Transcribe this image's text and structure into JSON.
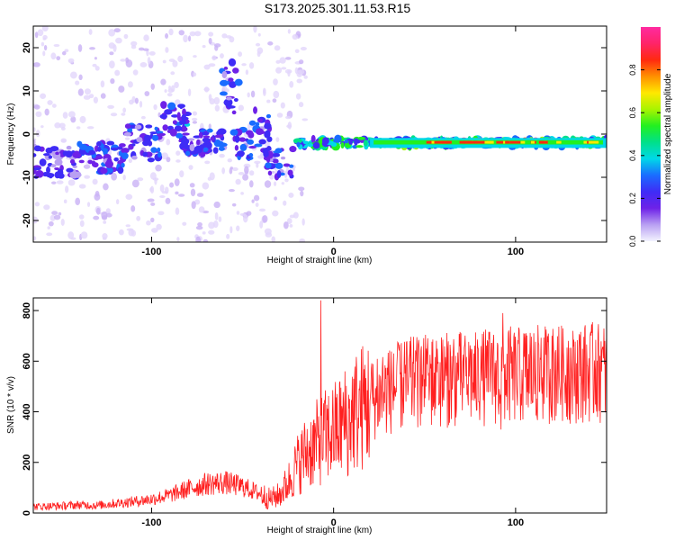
{
  "title": "S173.2025.301.11.53.R15",
  "chart_data": [
    {
      "type": "heatmap",
      "name": "spectrogram",
      "xlabel": "Height of straight line (km)",
      "ylabel": "Frequency (Hz)",
      "xlim": [
        -165,
        150
      ],
      "ylim": [
        -25,
        25
      ],
      "xticks": [
        -100,
        0,
        100
      ],
      "yticks": [
        -20,
        -10,
        0,
        10,
        20
      ],
      "colorbar": {
        "label": "Normalized spectral amplitude",
        "range": [
          0,
          1
        ],
        "ticks": [
          0.0,
          0.2,
          0.4,
          0.6,
          0.8
        ],
        "colors": [
          "#f3f3ff",
          "#b9a0f2",
          "#6e22e8",
          "#3f2cf6",
          "#1a6cff",
          "#00d8e8",
          "#00e08a",
          "#22f020",
          "#a8f400",
          "#ffe800",
          "#ff9000",
          "#ff2a10",
          "#ff2468",
          "#ff2aa0"
        ]
      },
      "bands": [
        {
          "x": [
            -165,
            -140
          ],
          "y": [
            -10,
            -3
          ],
          "amp": 0.25
        },
        {
          "x": [
            -140,
            -115
          ],
          "y": [
            -9,
            -2
          ],
          "amp": 0.3
        },
        {
          "x": [
            -115,
            -95
          ],
          "y": [
            -6,
            2
          ],
          "amp": 0.3
        },
        {
          "x": [
            -95,
            -80
          ],
          "y": [
            -2,
            7
          ],
          "amp": 0.35
        },
        {
          "x": [
            -85,
            -70
          ],
          "y": [
            -5,
            -1
          ],
          "amp": 0.3
        },
        {
          "x": [
            -75,
            -60
          ],
          "y": [
            -4,
            1
          ],
          "amp": 0.3
        },
        {
          "x": [
            -62,
            -52
          ],
          "y": [
            5,
            17
          ],
          "amp": 0.3
        },
        {
          "x": [
            -55,
            -45
          ],
          "y": [
            -6,
            1
          ],
          "amp": 0.3
        },
        {
          "x": [
            -45,
            -35
          ],
          "y": [
            -4,
            6
          ],
          "amp": 0.3
        },
        {
          "x": [
            -38,
            -22
          ],
          "y": [
            -10,
            -3
          ],
          "amp": 0.3
        },
        {
          "x": [
            -20,
            20
          ],
          "y": [
            -3,
            -1
          ],
          "amp": 0.5
        },
        {
          "x": [
            20,
            150
          ],
          "y": [
            -3,
            -1
          ],
          "amp": 0.55
        },
        {
          "x": [
            60,
            130
          ],
          "y": [
            -2.2,
            -1.6
          ],
          "amp": 0.95
        }
      ]
    },
    {
      "type": "line",
      "name": "snr",
      "xlabel": "Height of straight line (km)",
      "ylabel": "SNR (10 * v/v)",
      "xlim": [
        -165,
        150
      ],
      "ylim": [
        0,
        850
      ],
      "xticks": [
        -100,
        0,
        100
      ],
      "yticks": [
        0,
        200,
        400,
        600,
        800
      ],
      "color": "#ff2020",
      "series": [
        {
          "name": "SNR",
          "x": [
            -165,
            -150,
            -140,
            -130,
            -120,
            -110,
            -100,
            -90,
            -80,
            -70,
            -60,
            -50,
            -40,
            -35,
            -30,
            -25,
            -20,
            -15,
            -10,
            -5,
            0,
            5,
            10,
            20,
            30,
            40,
            50,
            60,
            70,
            80,
            90,
            100,
            110,
            120,
            130,
            140,
            150
          ],
          "values": [
            25,
            28,
            32,
            30,
            38,
            45,
            55,
            70,
            95,
            115,
            120,
            105,
            75,
            55,
            70,
            120,
            190,
            240,
            270,
            300,
            320,
            350,
            390,
            440,
            480,
            510,
            520,
            525,
            530,
            535,
            540,
            545,
            545,
            550,
            550,
            555,
            555
          ]
        }
      ],
      "peaks": [
        {
          "x": -7,
          "value": 840
        },
        {
          "x": 93,
          "value": 790
        },
        {
          "x": 92,
          "value": 330
        },
        {
          "x": 8,
          "value": 150
        }
      ]
    }
  ]
}
